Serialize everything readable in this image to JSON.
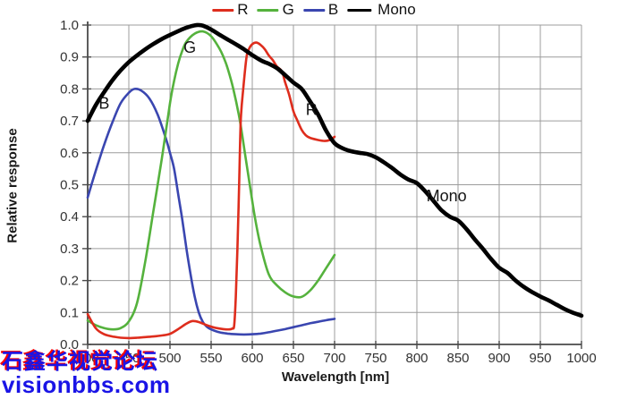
{
  "legend": {
    "items": [
      {
        "label": "R",
        "color": "#de2d1d"
      },
      {
        "label": "G",
        "color": "#55b23d"
      },
      {
        "label": "B",
        "color": "#3a46b0"
      },
      {
        "label": "Mono",
        "color": "#000000"
      }
    ]
  },
  "watermark": {
    "line1": "石鑫华视觉论坛",
    "line2": "visionbbs.com",
    "blue": "#1a14e6",
    "accent_red": "#ff0000"
  },
  "chart_data": {
    "type": "line",
    "title": "",
    "xlabel": "Wavelength [nm]",
    "ylabel": "Relative response",
    "xlim": [
      400,
      1000
    ],
    "ylim": [
      0.0,
      1.0
    ],
    "x_ticks": [
      400,
      450,
      500,
      550,
      600,
      650,
      700,
      750,
      800,
      850,
      900,
      950,
      1000
    ],
    "y_ticks": [
      0.0,
      0.1,
      0.2,
      0.3,
      0.4,
      0.5,
      0.6,
      0.7,
      0.8,
      0.9,
      1.0
    ],
    "grid": true,
    "legend_position": "top-center",
    "annotations": [
      {
        "text": "B",
        "nm": 420,
        "value": 0.755
      },
      {
        "text": "G",
        "nm": 524,
        "value": 0.93
      },
      {
        "text": "R",
        "nm": 672,
        "value": 0.735
      },
      {
        "text": "Mono",
        "nm": 836,
        "value": 0.465
      }
    ],
    "series": [
      {
        "name": "B",
        "color": "#3a46b0",
        "width": 2.6,
        "points": [
          [
            400,
            0.46
          ],
          [
            410,
            0.545
          ],
          [
            420,
            0.625
          ],
          [
            430,
            0.695
          ],
          [
            440,
            0.755
          ],
          [
            450,
            0.788
          ],
          [
            457,
            0.8
          ],
          [
            465,
            0.795
          ],
          [
            475,
            0.77
          ],
          [
            485,
            0.72
          ],
          [
            495,
            0.645
          ],
          [
            500,
            0.6
          ],
          [
            505,
            0.55
          ],
          [
            510,
            0.47
          ],
          [
            515,
            0.39
          ],
          [
            520,
            0.3
          ],
          [
            525,
            0.22
          ],
          [
            530,
            0.15
          ],
          [
            535,
            0.1
          ],
          [
            540,
            0.07
          ],
          [
            545,
            0.055
          ],
          [
            550,
            0.047
          ],
          [
            560,
            0.038
          ],
          [
            570,
            0.034
          ],
          [
            580,
            0.032
          ],
          [
            590,
            0.031
          ],
          [
            600,
            0.032
          ],
          [
            610,
            0.034
          ],
          [
            620,
            0.038
          ],
          [
            630,
            0.043
          ],
          [
            640,
            0.048
          ],
          [
            650,
            0.054
          ],
          [
            660,
            0.06
          ],
          [
            670,
            0.066
          ],
          [
            680,
            0.071
          ],
          [
            690,
            0.076
          ],
          [
            700,
            0.08
          ]
        ]
      },
      {
        "name": "G",
        "color": "#55b23d",
        "width": 2.6,
        "points": [
          [
            400,
            0.075
          ],
          [
            410,
            0.06
          ],
          [
            420,
            0.051
          ],
          [
            430,
            0.047
          ],
          [
            440,
            0.051
          ],
          [
            450,
            0.072
          ],
          [
            460,
            0.13
          ],
          [
            470,
            0.26
          ],
          [
            480,
            0.42
          ],
          [
            490,
            0.58
          ],
          [
            500,
            0.755
          ],
          [
            505,
            0.825
          ],
          [
            510,
            0.88
          ],
          [
            515,
            0.92
          ],
          [
            520,
            0.948
          ],
          [
            530,
            0.973
          ],
          [
            540,
            0.98
          ],
          [
            550,
            0.965
          ],
          [
            560,
            0.927
          ],
          [
            565,
            0.9
          ],
          [
            570,
            0.865
          ],
          [
            577,
            0.8
          ],
          [
            585,
            0.7
          ],
          [
            591,
            0.6
          ],
          [
            597,
            0.5
          ],
          [
            603,
            0.4
          ],
          [
            610,
            0.31
          ],
          [
            620,
            0.22
          ],
          [
            630,
            0.185
          ],
          [
            640,
            0.163
          ],
          [
            650,
            0.15
          ],
          [
            660,
            0.149
          ],
          [
            670,
            0.168
          ],
          [
            680,
            0.2
          ],
          [
            690,
            0.24
          ],
          [
            700,
            0.28
          ]
        ]
      },
      {
        "name": "R",
        "color": "#de2d1d",
        "width": 2.6,
        "points": [
          [
            400,
            0.095
          ],
          [
            410,
            0.05
          ],
          [
            420,
            0.032
          ],
          [
            430,
            0.025
          ],
          [
            440,
            0.021
          ],
          [
            450,
            0.02
          ],
          [
            460,
            0.021
          ],
          [
            470,
            0.023
          ],
          [
            480,
            0.025
          ],
          [
            490,
            0.028
          ],
          [
            500,
            0.033
          ],
          [
            510,
            0.048
          ],
          [
            520,
            0.065
          ],
          [
            527,
            0.073
          ],
          [
            535,
            0.07
          ],
          [
            545,
            0.06
          ],
          [
            555,
            0.052
          ],
          [
            565,
            0.048
          ],
          [
            572,
            0.047
          ],
          [
            576,
            0.05
          ],
          [
            578,
            0.06
          ],
          [
            580,
            0.15
          ],
          [
            582,
            0.3
          ],
          [
            584,
            0.5
          ],
          [
            586,
            0.7
          ],
          [
            589,
            0.8
          ],
          [
            593,
            0.9
          ],
          [
            596,
            0.925
          ],
          [
            600,
            0.94
          ],
          [
            605,
            0.945
          ],
          [
            610,
            0.938
          ],
          [
            615,
            0.925
          ],
          [
            620,
            0.905
          ],
          [
            625,
            0.89
          ],
          [
            630,
            0.87
          ],
          [
            636,
            0.855
          ],
          [
            640,
            0.82
          ],
          [
            645,
            0.78
          ],
          [
            650,
            0.73
          ],
          [
            655,
            0.7
          ],
          [
            660,
            0.672
          ],
          [
            665,
            0.655
          ],
          [
            670,
            0.647
          ],
          [
            680,
            0.64
          ],
          [
            688,
            0.637
          ],
          [
            694,
            0.64
          ],
          [
            700,
            0.65
          ]
        ]
      },
      {
        "name": "Mono",
        "color": "#000000",
        "width": 4.6,
        "points": [
          [
            400,
            0.7
          ],
          [
            410,
            0.75
          ],
          [
            420,
            0.79
          ],
          [
            430,
            0.827
          ],
          [
            440,
            0.858
          ],
          [
            450,
            0.884
          ],
          [
            460,
            0.905
          ],
          [
            470,
            0.924
          ],
          [
            480,
            0.941
          ],
          [
            490,
            0.956
          ],
          [
            500,
            0.969
          ],
          [
            510,
            0.981
          ],
          [
            520,
            0.992
          ],
          [
            530,
            0.999
          ],
          [
            535,
            1.0
          ],
          [
            540,
            0.998
          ],
          [
            550,
            0.986
          ],
          [
            560,
            0.97
          ],
          [
            570,
            0.955
          ],
          [
            580,
            0.94
          ],
          [
            590,
            0.924
          ],
          [
            600,
            0.906
          ],
          [
            610,
            0.89
          ],
          [
            615,
            0.884
          ],
          [
            620,
            0.879
          ],
          [
            630,
            0.865
          ],
          [
            640,
            0.843
          ],
          [
            650,
            0.82
          ],
          [
            660,
            0.8
          ],
          [
            670,
            0.762
          ],
          [
            680,
            0.72
          ],
          [
            690,
            0.668
          ],
          [
            700,
            0.63
          ],
          [
            710,
            0.614
          ],
          [
            720,
            0.605
          ],
          [
            730,
            0.6
          ],
          [
            740,
            0.596
          ],
          [
            750,
            0.586
          ],
          [
            760,
            0.57
          ],
          [
            770,
            0.552
          ],
          [
            780,
            0.532
          ],
          [
            790,
            0.516
          ],
          [
            800,
            0.505
          ],
          [
            810,
            0.48
          ],
          [
            820,
            0.45
          ],
          [
            830,
            0.42
          ],
          [
            840,
            0.4
          ],
          [
            850,
            0.388
          ],
          [
            860,
            0.362
          ],
          [
            870,
            0.33
          ],
          [
            880,
            0.3
          ],
          [
            890,
            0.268
          ],
          [
            900,
            0.24
          ],
          [
            910,
            0.224
          ],
          [
            920,
            0.2
          ],
          [
            930,
            0.18
          ],
          [
            940,
            0.164
          ],
          [
            950,
            0.15
          ],
          [
            960,
            0.138
          ],
          [
            970,
            0.124
          ],
          [
            980,
            0.11
          ],
          [
            990,
            0.099
          ],
          [
            1000,
            0.09
          ]
        ]
      }
    ]
  }
}
